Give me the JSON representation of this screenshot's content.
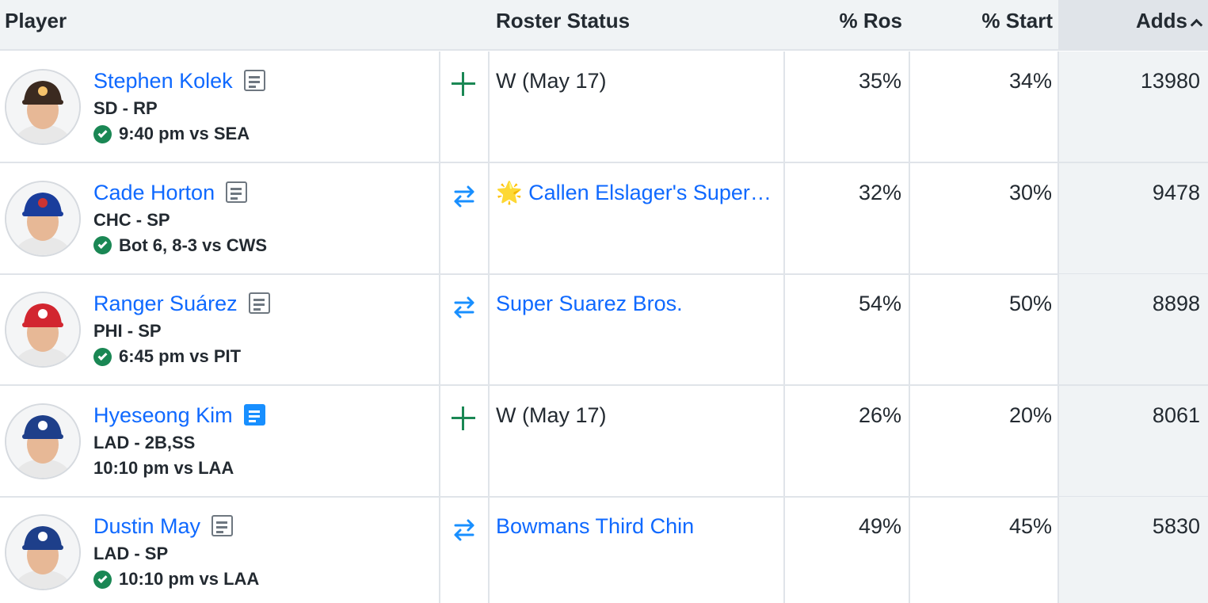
{
  "columns": {
    "player": "Player",
    "roster_status": "Roster Status",
    "pct_ros": "% Ros",
    "pct_start": "% Start",
    "adds": "Adds"
  },
  "rows": [
    {
      "name": "Stephen Kolek",
      "team_pos": "SD - RP",
      "game": "9:40 pm vs SEA",
      "game_confirmed": true,
      "note_active": false,
      "action": "add",
      "status": "W (May 17)",
      "status_is_team": false,
      "status_icon": "",
      "pct_ros": "35%",
      "pct_start": "34%",
      "adds": "13980",
      "cap_color": "#3b2a20",
      "cap_accent": "#f5c26b",
      "avatar_icon": "player-photo-sd"
    },
    {
      "name": "Cade Horton",
      "team_pos": "CHC - SP",
      "game": "Bot 6, 8-3 vs CWS",
      "game_confirmed": true,
      "note_active": false,
      "action": "trade",
      "status": "Callen Elslager's Superstars",
      "status_is_team": true,
      "status_icon": "🌟",
      "pct_ros": "32%",
      "pct_start": "30%",
      "adds": "9478",
      "cap_color": "#1a3d9c",
      "cap_accent": "#cc3433",
      "avatar_icon": "player-photo-chc"
    },
    {
      "name": "Ranger Suárez",
      "team_pos": "PHI - SP",
      "game": "6:45 pm vs PIT",
      "game_confirmed": true,
      "note_active": false,
      "action": "trade",
      "status": "Super Suarez Bros.",
      "status_is_team": true,
      "status_icon": "",
      "pct_ros": "54%",
      "pct_start": "50%",
      "adds": "8898",
      "cap_color": "#d22630",
      "cap_accent": "#ffffff",
      "avatar_icon": "player-photo-phi"
    },
    {
      "name": "Hyeseong Kim",
      "team_pos": "LAD - 2B,SS",
      "game": "10:10 pm vs LAA",
      "game_confirmed": false,
      "note_active": true,
      "action": "add",
      "status": "W (May 17)",
      "status_is_team": false,
      "status_icon": "",
      "pct_ros": "26%",
      "pct_start": "20%",
      "adds": "8061",
      "cap_color": "#1e3f8a",
      "cap_accent": "#ffffff",
      "avatar_icon": "player-photo-lad"
    },
    {
      "name": "Dustin May",
      "team_pos": "LAD - SP",
      "game": "10:10 pm vs LAA",
      "game_confirmed": true,
      "note_active": false,
      "action": "trade",
      "status": "Bowmans Third Chin",
      "status_is_team": true,
      "status_icon": "",
      "pct_ros": "49%",
      "pct_start": "45%",
      "adds": "5830",
      "cap_color": "#1e3f8a",
      "cap_accent": "#ffffff",
      "avatar_icon": "player-photo-lad"
    }
  ]
}
